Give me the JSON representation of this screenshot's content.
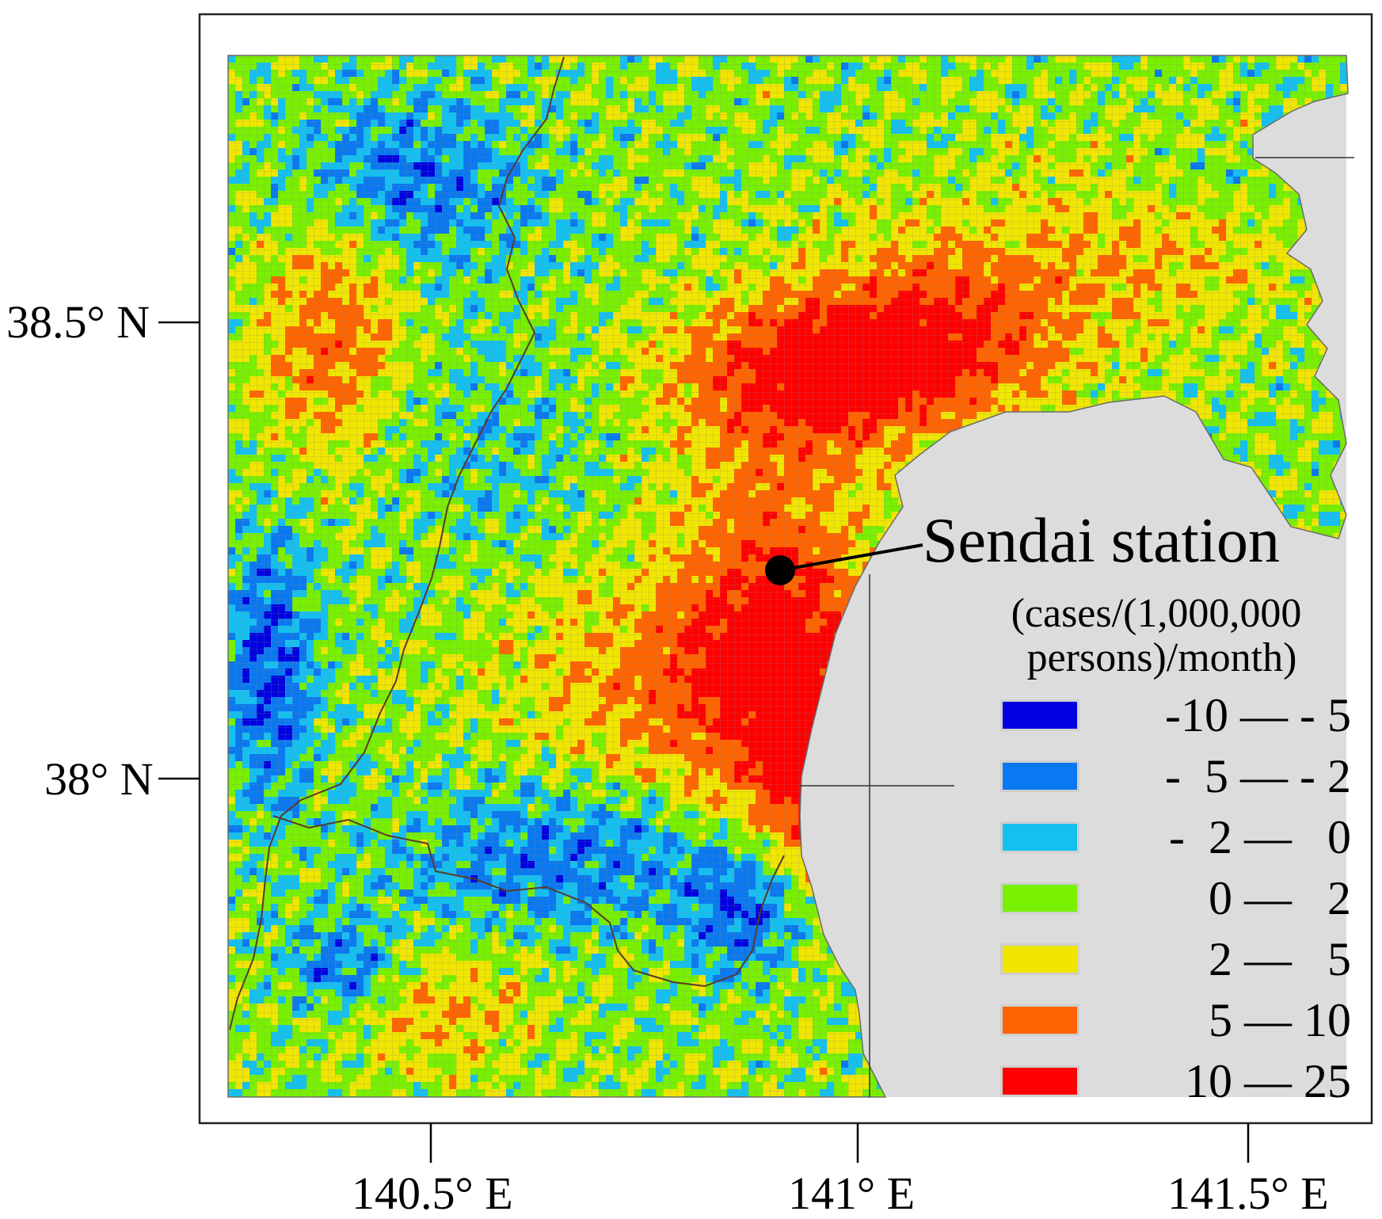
{
  "map": {
    "latitude_labels": [
      "38.5° N",
      "38° N"
    ],
    "longitude_labels": [
      "140.5° E",
      "141° E",
      "141.5° E"
    ],
    "station": {
      "name": "Sendai station"
    },
    "colors": {
      "sea": "#dcdcdc",
      "frame": "#222222",
      "boundary": "#5a3a28",
      "grid": "#8a8a8a",
      "station_marker": "#000000"
    }
  },
  "legend": {
    "title_line1": "(cases/(1,000,000",
    "title_line2": "persons)/month)",
    "classes": [
      {
        "label": "-10 — - 5",
        "color": "#0000e0"
      },
      {
        "label": "-  5 — - 2",
        "color": "#0a78f0"
      },
      {
        "label": "-  2 —   0",
        "color": "#14c0f0"
      },
      {
        "label": "0 —   2",
        "color": "#78f000"
      },
      {
        "label": "2 —   5",
        "color": "#f0e600"
      },
      {
        "label": "5 — 10",
        "color": "#ff6400"
      },
      {
        "label": "10 — 25",
        "color": "#ff0000"
      }
    ]
  }
}
